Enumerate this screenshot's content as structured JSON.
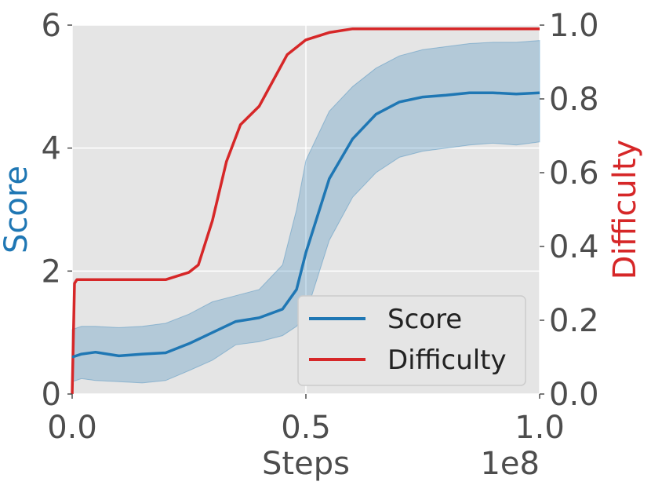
{
  "chart_data": {
    "type": "line",
    "x_label": "Steps",
    "x_offset_label": "1e8",
    "x_ticks": [
      "0.0",
      "0.5",
      "1.0"
    ],
    "x_tick_values": [
      0.0,
      0.5,
      1.0
    ],
    "xlim": [
      0.0,
      1.0
    ],
    "y_left": {
      "label": "Score",
      "ticks": [
        "0",
        "2",
        "4",
        "6"
      ],
      "tick_values": [
        0,
        2,
        4,
        6
      ],
      "ylim": [
        0,
        6
      ],
      "color": "#1f77b4"
    },
    "y_right": {
      "label": "Difficulty",
      "ticks": [
        "0.0",
        "0.2",
        "0.4",
        "0.6",
        "0.8",
        "1.0"
      ],
      "tick_values": [
        0.0,
        0.2,
        0.4,
        0.6,
        0.8,
        1.0
      ],
      "ylim": [
        0.0,
        1.0
      ],
      "color": "#d62728"
    },
    "grid": true,
    "background": "#e5e5e5",
    "legend_position": "lower-right",
    "series": [
      {
        "name": "Score",
        "axis": "left",
        "color": "#1f77b4",
        "x": [
          0.0,
          0.02,
          0.05,
          0.1,
          0.15,
          0.2,
          0.25,
          0.3,
          0.35,
          0.4,
          0.45,
          0.48,
          0.5,
          0.55,
          0.6,
          0.65,
          0.7,
          0.75,
          0.8,
          0.85,
          0.9,
          0.95,
          1.0
        ],
        "y": [
          0.6,
          0.65,
          0.68,
          0.62,
          0.65,
          0.67,
          0.82,
          1.0,
          1.18,
          1.24,
          1.38,
          1.7,
          2.3,
          3.5,
          4.15,
          4.55,
          4.75,
          4.83,
          4.86,
          4.9,
          4.9,
          4.88,
          4.9
        ],
        "band_upper": [
          1.05,
          1.1,
          1.1,
          1.08,
          1.1,
          1.15,
          1.3,
          1.5,
          1.6,
          1.7,
          2.1,
          3.0,
          3.8,
          4.6,
          5.0,
          5.3,
          5.5,
          5.6,
          5.65,
          5.7,
          5.72,
          5.72,
          5.75
        ],
        "band_lower": [
          0.2,
          0.25,
          0.22,
          0.2,
          0.18,
          0.22,
          0.38,
          0.55,
          0.8,
          0.85,
          0.95,
          1.1,
          1.3,
          2.5,
          3.2,
          3.6,
          3.85,
          3.95,
          4.0,
          4.05,
          4.08,
          4.05,
          4.1
        ]
      },
      {
        "name": "Difficulty",
        "axis": "right",
        "color": "#d62728",
        "x": [
          0.0,
          0.005,
          0.01,
          0.05,
          0.1,
          0.15,
          0.2,
          0.25,
          0.27,
          0.3,
          0.33,
          0.36,
          0.4,
          0.43,
          0.46,
          0.5,
          0.55,
          0.6,
          0.65,
          0.7,
          0.75,
          0.8,
          0.85,
          0.9,
          0.95,
          1.0
        ],
        "y": [
          0.0,
          0.3,
          0.31,
          0.31,
          0.31,
          0.31,
          0.31,
          0.33,
          0.35,
          0.47,
          0.63,
          0.73,
          0.78,
          0.85,
          0.92,
          0.96,
          0.98,
          0.99,
          0.99,
          0.99,
          0.99,
          0.99,
          0.99,
          0.99,
          0.99,
          0.99
        ]
      }
    ]
  }
}
